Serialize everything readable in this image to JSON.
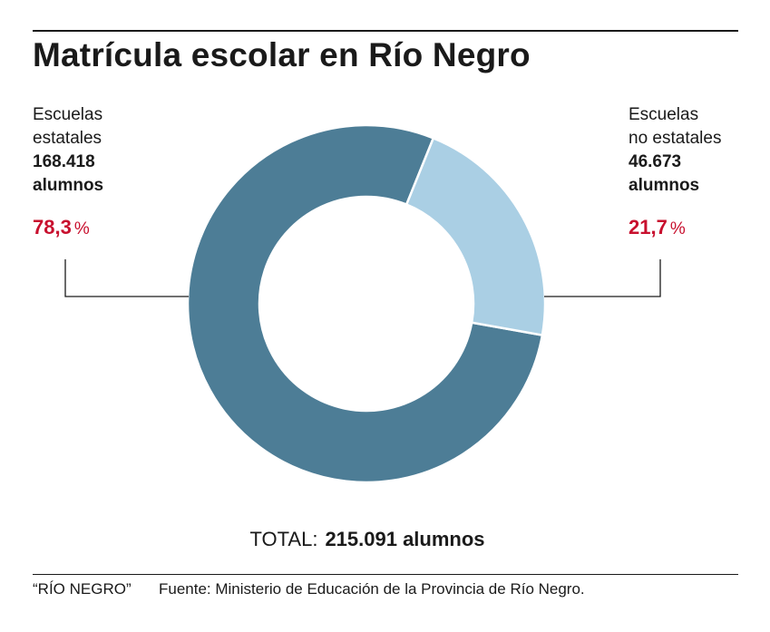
{
  "title": "Matrícula escolar en Río Negro",
  "chart_data": {
    "type": "pie",
    "title": "Matrícula escolar en Río Negro",
    "series": [
      {
        "name": "Escuelas estatales",
        "name_line1": "Escuelas",
        "name_line2": "estatales",
        "count": "168.418",
        "unit": "alumnos",
        "value": 168418,
        "percent": 78.3,
        "percent_label": "78,3",
        "color": "#4d7d96"
      },
      {
        "name": "Escuelas no estatales",
        "name_line1": "Escuelas",
        "name_line2": "no estatales",
        "count": "46.673",
        "unit": "alumnos",
        "value": 46673,
        "percent": 21.7,
        "percent_label": "21,7",
        "color": "#aacfe4"
      }
    ],
    "percent_symbol": "%",
    "total_label": "TOTAL:",
    "total_value": "215.091 alumnos",
    "total": 215091
  },
  "footer": {
    "credit": "“RÍO NEGRO”",
    "source": "Fuente: Ministerio de Educación de la Provincia de Río Negro."
  },
  "colors": {
    "accent_red": "#c8102e",
    "text": "#1a1a1a"
  }
}
